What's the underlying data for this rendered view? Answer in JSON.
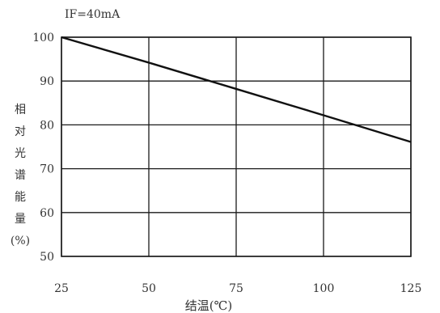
{
  "chart_data": {
    "type": "line",
    "title": "",
    "condition_label": "IF=40mA",
    "xlabel": "结温(℃)",
    "ylabel_chars": [
      "相",
      "对",
      "光",
      "谱",
      "能",
      "量",
      "(%)"
    ],
    "x_ticks": [
      25,
      50,
      75,
      100,
      125
    ],
    "y_ticks": [
      50,
      60,
      70,
      80,
      90,
      100
    ],
    "x_tick_labels": [
      "25",
      "50",
      "75",
      "100",
      "125"
    ],
    "y_tick_labels": [
      "50",
      "60",
      "70",
      "80",
      "90",
      "100"
    ],
    "xlim": [
      25,
      125
    ],
    "ylim": [
      50,
      100
    ],
    "grid": true,
    "series": [
      {
        "x": [
          25,
          50,
          75,
          100,
          125
        ],
        "values": [
          100,
          94.2,
          88.2,
          82.2,
          76.1
        ]
      }
    ]
  }
}
